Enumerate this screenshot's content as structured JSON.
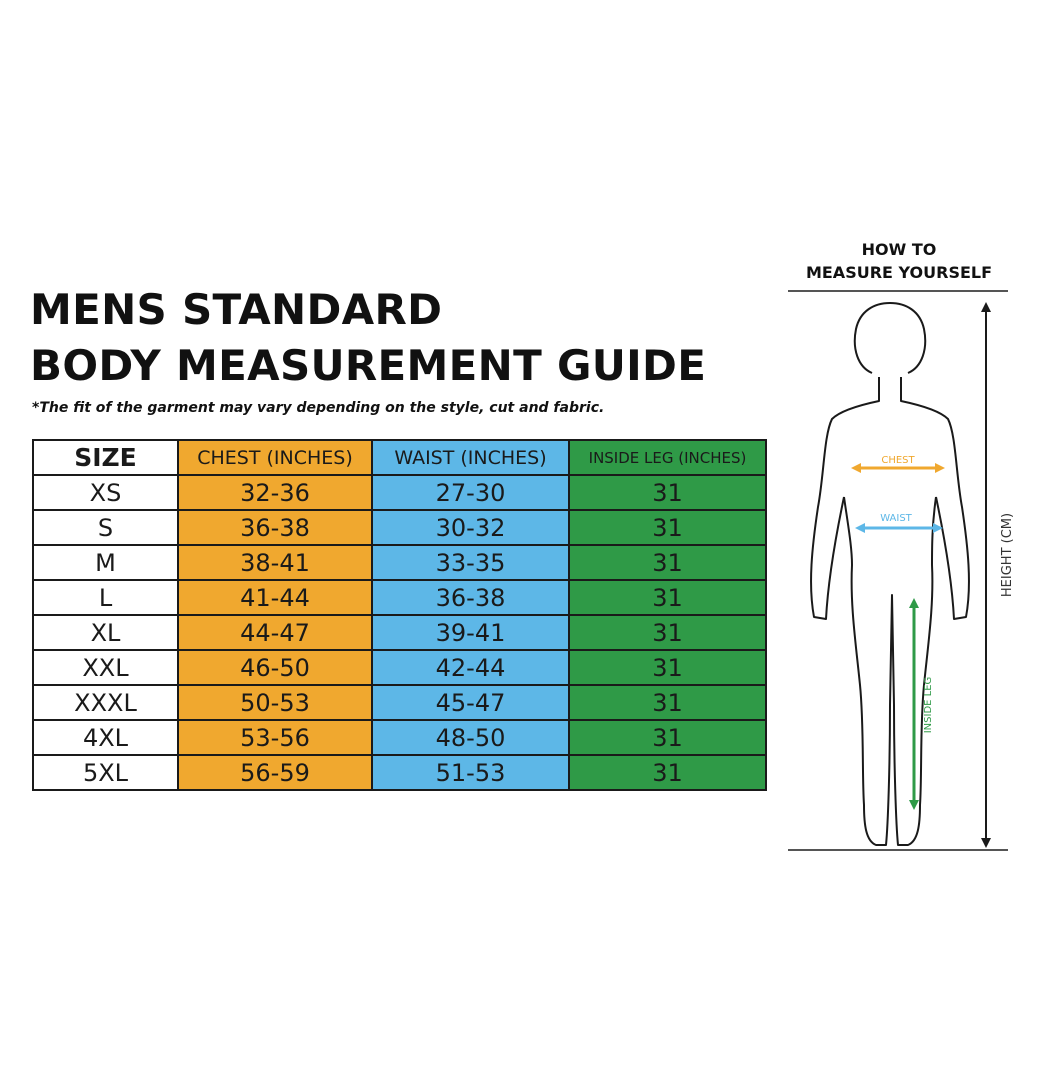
{
  "title": {
    "line1": "MENS STANDARD",
    "line2": "BODY MEASUREMENT GUIDE"
  },
  "note": "*The fit of the garment may vary depending on the style, cut and fabric.",
  "table": {
    "headers": [
      "SIZE",
      "CHEST (INCHES)",
      "WAIST (INCHES)",
      "INSIDE LEG (INCHES)"
    ],
    "rows": [
      [
        "XS",
        "32-36",
        "27-30",
        "31"
      ],
      [
        "S",
        "36-38",
        "30-32",
        "31"
      ],
      [
        "M",
        "38-41",
        "33-35",
        "31"
      ],
      [
        "L",
        "41-44",
        "36-38",
        "31"
      ],
      [
        "XL",
        "44-47",
        "39-41",
        "31"
      ],
      [
        "XXL",
        "46-50",
        "42-44",
        "31"
      ],
      [
        "XXXL",
        "50-53",
        "45-47",
        "31"
      ],
      [
        "4XL",
        "53-56",
        "48-50",
        "31"
      ],
      [
        "5XL",
        "56-59",
        "51-53",
        "31"
      ]
    ]
  },
  "howto": {
    "line1": "HOW TO",
    "line2": "MEASURE YOURSELF"
  },
  "figure": {
    "chest_label": "CHEST",
    "waist_label": "WAIST",
    "inside_leg_label": "INSIDE LEG",
    "height_label": "HEIGHT (CM)"
  },
  "colors": {
    "chest": "#f0a82f",
    "waist": "#5db7e7",
    "inside_leg": "#2f9a47",
    "border": "#1a1a1a"
  }
}
